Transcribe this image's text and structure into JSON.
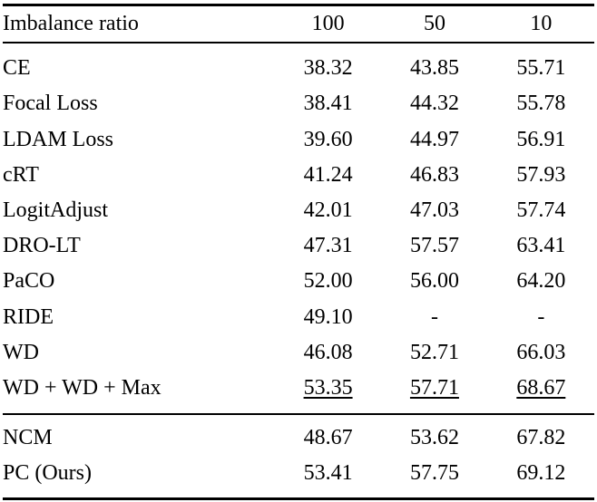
{
  "table": {
    "header": {
      "label": "Imbalance ratio",
      "cols": [
        "100",
        "50",
        "10"
      ]
    },
    "rows": [
      {
        "label": "CE",
        "values": [
          "38.32",
          "43.85",
          "55.71"
        ]
      },
      {
        "label": "Focal Loss",
        "values": [
          "38.41",
          "44.32",
          "55.78"
        ]
      },
      {
        "label": "LDAM Loss",
        "values": [
          "39.60",
          "44.97",
          "56.91"
        ]
      },
      {
        "label": "cRT",
        "values": [
          "41.24",
          "46.83",
          "57.93"
        ]
      },
      {
        "label": "LogitAdjust",
        "values": [
          "42.01",
          "47.03",
          "57.74"
        ]
      },
      {
        "label": "DRO-LT",
        "values": [
          "47.31",
          "57.57",
          "63.41"
        ]
      },
      {
        "label": "PaCO",
        "values": [
          "52.00",
          "56.00",
          "64.20"
        ]
      },
      {
        "label": "RIDE",
        "values": [
          "49.10",
          "-",
          "-"
        ]
      },
      {
        "label": "WD",
        "values": [
          "46.08",
          "52.71",
          "66.03"
        ]
      },
      {
        "label": "WD + WD + Max",
        "values": [
          "53.35",
          "57.71",
          "68.67"
        ]
      }
    ],
    "footer_rows": [
      {
        "label": "NCM",
        "values": [
          "48.67",
          "53.62",
          "67.82"
        ]
      },
      {
        "label": "PC (Ours)",
        "values": [
          "53.41",
          "57.75",
          "69.12"
        ]
      }
    ]
  }
}
